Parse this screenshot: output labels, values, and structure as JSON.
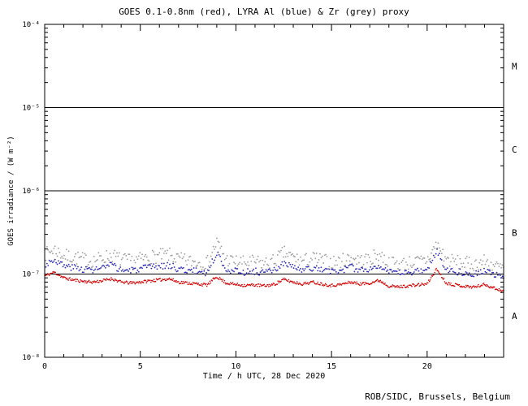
{
  "chart_data": {
    "type": "scatter",
    "title": "GOES 0.1-0.8nm (red), LYRA Al (blue) & Zr (grey) proxy",
    "xlabel": "Time / h UTC, 28 Dec 2020",
    "ylabel": "GOES irradiance / (W m⁻²)",
    "xlim": [
      0,
      24
    ],
    "ylim_exp": [
      -8,
      -4
    ],
    "x_major_ticks": [
      0,
      5,
      10,
      15,
      20
    ],
    "x_minor_step": 1,
    "y_tick_exps": [
      -8,
      -7,
      -6,
      -5,
      -4
    ],
    "y_tick_labels": [
      "10⁻⁸",
      "10⁻⁷",
      "10⁻⁶",
      "10⁻⁵",
      "10⁻⁴"
    ],
    "hlines_exp": [
      -5,
      -6,
      -7
    ],
    "class_labels": [
      {
        "label": "M",
        "y_exp": -4.5
      },
      {
        "label": "C",
        "y_exp": -5.5
      },
      {
        "label": "B",
        "y_exp": -6.5
      },
      {
        "label": "A",
        "y_exp": -7.5
      }
    ],
    "x_control": [
      0,
      0.5,
      1,
      1.5,
      2,
      2.5,
      3,
      3.5,
      4,
      4.5,
      5,
      5.5,
      6,
      6.5,
      7,
      7.5,
      8,
      8.5,
      9,
      9.5,
      10,
      10.5,
      11,
      11.5,
      12,
      12.5,
      13,
      13.5,
      14,
      14.5,
      15,
      15.5,
      16,
      16.5,
      17,
      17.5,
      18,
      18.5,
      19,
      19.5,
      20,
      20.5,
      21,
      21.5,
      22,
      22.5,
      23,
      23.5,
      24
    ],
    "series": [
      {
        "name": "LYRA Zr proxy",
        "color": "#9a9a9a",
        "unit": 1e-08,
        "jitter": 0.085,
        "step": 0.06,
        "r": 0.9,
        "seed": 7,
        "values": [
          17,
          20,
          16.5,
          16,
          15,
          14.5,
          15.5,
          17,
          14.8,
          14.3,
          15,
          16,
          16.5,
          17,
          15,
          14.3,
          14,
          13.5,
          24,
          15,
          14,
          13.6,
          14,
          13.4,
          14.3,
          18,
          15.8,
          14.3,
          15.5,
          14.6,
          13.8,
          14.3,
          15.8,
          14.6,
          15,
          17.5,
          13.5,
          13.2,
          13.6,
          14,
          14.6,
          23,
          15,
          14,
          13.4,
          13.2,
          14.3,
          12.6,
          11.5
        ]
      },
      {
        "name": "LYRA Al proxy",
        "color": "#2a2ab8",
        "unit": 1e-08,
        "jitter": 0.04,
        "step": 0.06,
        "r": 0.9,
        "seed": 3,
        "values": [
          13,
          15,
          12.5,
          12,
          11.5,
          11.2,
          11.8,
          12.8,
          11.2,
          11.0,
          11.4,
          12.0,
          12.4,
          12.8,
          11.5,
          11.0,
          10.8,
          10.4,
          18.0,
          11.5,
          10.8,
          10.5,
          10.8,
          10.4,
          11.0,
          13.5,
          12.0,
          11.0,
          11.8,
          11.2,
          10.6,
          11.0,
          12.0,
          11.2,
          11.5,
          13.0,
          10.4,
          10.2,
          10.5,
          10.8,
          11.2,
          19.0,
          11.5,
          10.8,
          10.3,
          10.2,
          11.0,
          9.8,
          9.0
        ]
      },
      {
        "name": "GOES 0.1-0.8nm",
        "color": "#d40000",
        "unit": 1e-08,
        "jitter": 0.018,
        "step": 0.04,
        "r": 0.8,
        "seed": 11,
        "values": [
          9.5,
          10.5,
          9.0,
          8.5,
          8.2,
          8.0,
          8.3,
          8.8,
          8.0,
          7.8,
          8.0,
          8.3,
          8.5,
          8.8,
          8.0,
          7.8,
          7.6,
          7.4,
          9.3,
          7.8,
          7.5,
          7.3,
          7.4,
          7.2,
          7.5,
          8.6,
          8.0,
          7.6,
          8.0,
          7.6,
          7.3,
          7.5,
          8.0,
          7.6,
          7.8,
          8.4,
          7.2,
          7.0,
          7.2,
          7.4,
          7.6,
          11.5,
          7.8,
          7.4,
          7.1,
          7.0,
          7.5,
          6.8,
          6.2
        ]
      }
    ]
  },
  "footer": {
    "credit": "ROB/SIDC, Brussels, Belgium"
  },
  "colors": {
    "axis": "#000000",
    "background": "#ffffff"
  }
}
